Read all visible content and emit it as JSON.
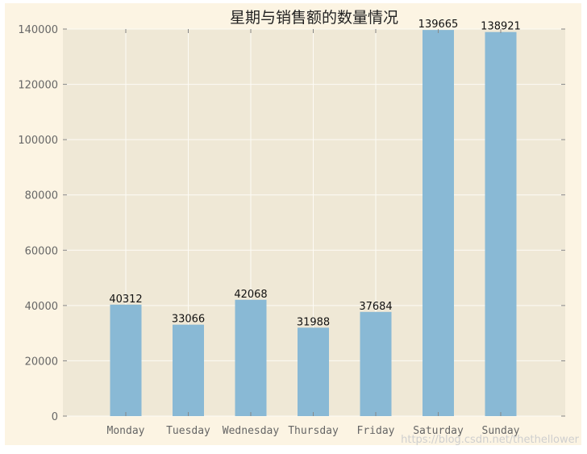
{
  "chart_data": {
    "type": "bar",
    "title": "星期与销售额的数量情况",
    "categories": [
      "Monday",
      "Tuesday",
      "Wednesday",
      "Thursday",
      "Friday",
      "Saturday",
      "Sunday"
    ],
    "values": [
      40312,
      33066,
      42068,
      31988,
      37684,
      139665,
      138921
    ],
    "data_labels": [
      "40312",
      "33066",
      "42068",
      "31988",
      "37684",
      "139665",
      "138921"
    ],
    "yticks": [
      0,
      20000,
      40000,
      60000,
      80000,
      100000,
      120000,
      140000
    ],
    "ytick_labels": [
      "0",
      "20000",
      "40000",
      "60000",
      "80000",
      "100000",
      "120000",
      "140000"
    ],
    "ylim": [
      0,
      140000
    ],
    "xlabel": "",
    "ylabel": "",
    "grid": true,
    "bar_color": "#89b9d5",
    "plot_background": "#efe8d6",
    "figure_background": "#fcf4e3",
    "grid_color": "#fdfbf5"
  },
  "watermark": "https://blog.csdn.net/thethellower"
}
